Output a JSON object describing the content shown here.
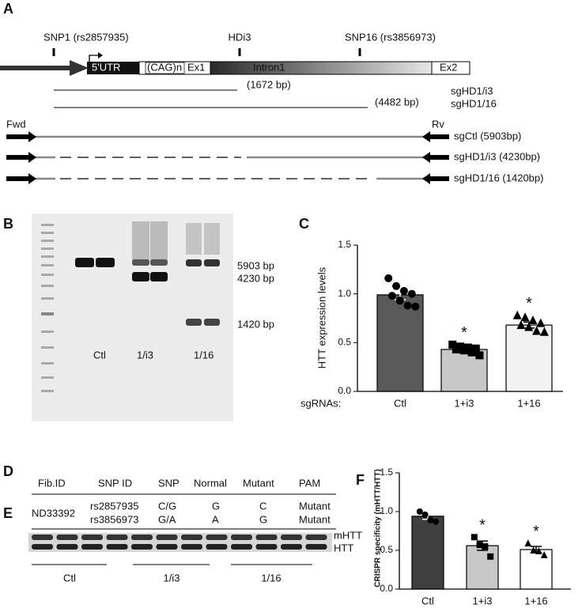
{
  "panels": {
    "a": "A",
    "b": "B",
    "c": "C",
    "d": "D",
    "e": "E",
    "f": "F"
  },
  "gene_map": {
    "markers": [
      "SNP1 (rs2857935)",
      "HDi3",
      "SNP16 (rs3856973)"
    ],
    "regions": [
      "5'UTR",
      "(CAG)n",
      "Ex1",
      "Intron1",
      "Ex2"
    ],
    "deletions": [
      {
        "size": "(1672 bp)",
        "name": "sgHD1/i3"
      },
      {
        "size": "(4482 bp)",
        "name": "sgHD1/16"
      }
    ],
    "primers": [
      "Fwd",
      "Rv"
    ],
    "amplicons": [
      "sgCtl (5903bp)",
      "sgHD1/i3 (4230bp)",
      "sgHD1/16 (1420bp)"
    ]
  },
  "gel": {
    "band_sizes": [
      "5903 bp",
      "4230 bp",
      "1420 bp"
    ],
    "lanes": [
      "Ctl",
      "1/i3",
      "1/16"
    ]
  },
  "table": {
    "header": [
      "Fib.ID",
      "SNP ID",
      "SNP",
      "Normal",
      "Mutant",
      "PAM"
    ],
    "fib_id": "ND33392",
    "rows": [
      [
        "rs2857935",
        "C/G",
        "G",
        "C",
        "Mutant"
      ],
      [
        "rs3856973",
        "G/A",
        "A",
        "G",
        "Mutant"
      ]
    ]
  },
  "blot": {
    "bands": [
      "mHTT",
      "HTT"
    ],
    "groups": [
      "Ctl",
      "1/i3",
      "1/16"
    ]
  },
  "chart_data": [
    {
      "type": "bar",
      "y_label": "HTT expression levels",
      "x_label": "sgRNAs:",
      "categories": [
        "Ctl",
        "1+i3",
        "1+16"
      ],
      "values": [
        0.99,
        0.43,
        0.68
      ],
      "errors": [
        0.05,
        0.025,
        0.03
      ],
      "colors": [
        "#595959",
        "#c8c8c8",
        "#f2f2f2"
      ],
      "markers": [
        "circle",
        "square",
        "triangle"
      ],
      "points": [
        [
          1.16,
          1.08,
          1.03,
          1.0,
          0.98,
          0.93,
          0.88,
          0.87
        ],
        [
          0.48,
          0.46,
          0.45,
          0.44,
          0.43,
          0.42,
          0.4,
          0.37
        ],
        [
          0.78,
          0.76,
          0.73,
          0.7,
          0.68,
          0.66,
          0.62,
          0.61
        ]
      ],
      "annotations": [
        null,
        "*",
        "*"
      ],
      "ylim": [
        0,
        1.5
      ],
      "yticks": [
        {
          "value": 0,
          "label": "0.0"
        },
        0.5,
        {
          "value": 1,
          "label": "1.0"
        },
        1.5
      ]
    },
    {
      "type": "bar",
      "y_label": "CRISPR specificity (mHTT/HTT)",
      "categories": [
        "Ctl",
        "1+i3",
        "1+16"
      ],
      "values": [
        0.94,
        0.56,
        0.51
      ],
      "errors": [
        0.04,
        0.06,
        0.04
      ],
      "colors": [
        "#404040",
        "#c8c8c8",
        "#ffffff"
      ],
      "markers": [
        "circle",
        "square",
        "triangle"
      ],
      "points": [
        [
          1.0,
          0.96,
          0.89,
          0.87
        ],
        [
          0.67,
          0.57,
          0.55,
          0.42
        ],
        [
          0.59,
          0.5,
          0.49,
          0.44
        ]
      ],
      "annotations": [
        null,
        "*",
        "*"
      ],
      "ylim": [
        0,
        1.5
      ],
      "yticks": [
        {
          "value": 0,
          "label": "0.0"
        },
        0.5,
        {
          "value": 1,
          "label": "1.0"
        },
        1.5
      ]
    }
  ]
}
